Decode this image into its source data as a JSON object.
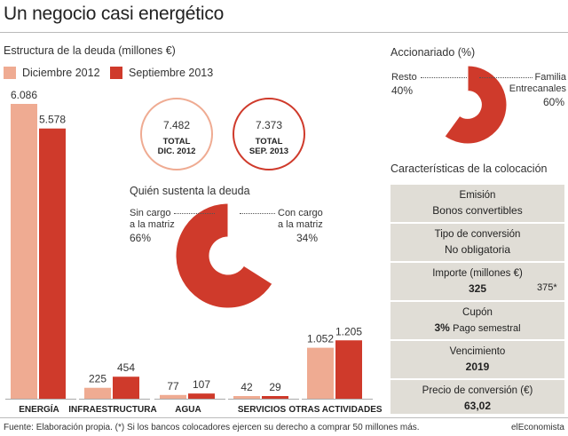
{
  "header": {
    "title": "Un negocio casi energético"
  },
  "debt": {
    "subtitle": "Estructura de la deuda (millones €)",
    "legend": [
      {
        "label": "Diciembre 2012",
        "color": "#efab92"
      },
      {
        "label": "Septiembre 2013",
        "color": "#cf3a2b"
      }
    ],
    "totals": [
      {
        "value": "7.482",
        "label1": "TOTAL",
        "label2": "DIC. 2012",
        "color": "#efab92"
      },
      {
        "value": "7.373",
        "label1": "TOTAL",
        "label2": "SEP. 2013",
        "color": "#cf3a2b"
      }
    ]
  },
  "chart_data": [
    {
      "type": "bar",
      "title": "Estructura de la deuda (millones €)",
      "categories": [
        "ENERGÍA",
        "INFRAESTRUCTURA",
        "AGUA",
        "SERVICIOS",
        "OTRAS ACTIVIDADES"
      ],
      "series": [
        {
          "name": "Diciembre 2012",
          "values": [
            6086,
            225,
            77,
            42,
            1052
          ],
          "labels": [
            "6.086",
            "225",
            "77",
            "42",
            "1.052"
          ],
          "color": "#efab92"
        },
        {
          "name": "Septiembre 2013",
          "values": [
            5578,
            454,
            107,
            29,
            1205
          ],
          "labels": [
            "5.578",
            "454",
            "107",
            "29",
            "1.205"
          ],
          "color": "#cf3a2b"
        }
      ],
      "ylim": [
        0,
        6086
      ],
      "grid": false
    },
    {
      "type": "pie",
      "title": "Quién sustenta la deuda",
      "slices": [
        {
          "label": "Sin cargo a la matriz",
          "value": 66,
          "pct": "66%",
          "color": "#cf3a2b"
        },
        {
          "label": "Con cargo a la matriz",
          "value": 34,
          "pct": "34%",
          "color": "#ffffff"
        }
      ]
    },
    {
      "type": "pie",
      "title": "Accionariado (%)",
      "slices": [
        {
          "label": "Familia Entrecanales",
          "value": 60,
          "pct": "60%",
          "color": "#cf3a2b"
        },
        {
          "label": "Resto",
          "value": 40,
          "pct": "40%",
          "color": "#ffffff"
        }
      ]
    }
  ],
  "who": {
    "title": "Quién sustenta la deuda",
    "left_line1": "Sin cargo",
    "left_line2": "a la matriz",
    "left_pct": "66%",
    "right_line1": "Con cargo",
    "right_line2": "a la matriz",
    "right_pct": "34%"
  },
  "shareholders": {
    "title": "Accionariado (%)",
    "left_label": "Resto",
    "left_pct": "40%",
    "right_line1": "Familia",
    "right_line2": "Entrecanales",
    "right_pct": "60%"
  },
  "characteristics": {
    "title": "Características de la colocación",
    "rows": [
      {
        "label": "Emisión",
        "value": "Bonos convertibles",
        "bold": "",
        "extra": ""
      },
      {
        "label": "Tipo de conversión",
        "value": "No obligatoria",
        "bold": "",
        "extra": ""
      },
      {
        "label": "Importe (millones €)",
        "value": "",
        "bold": "325",
        "extra": "375*"
      },
      {
        "label": "Cupón",
        "value": "Pago semestral",
        "bold": "3%",
        "extra": ""
      },
      {
        "label": "Vencimiento",
        "value": "",
        "bold": "2019",
        "extra": ""
      },
      {
        "label": "Precio de conversión (€)",
        "value": "",
        "bold": "63,02",
        "extra": ""
      }
    ]
  },
  "footer": {
    "source": "Fuente: Elaboración propia. (*) Si los bancos colocadores ejercen su derecho a comprar 50 millones más.",
    "brand": "elEconomista"
  }
}
